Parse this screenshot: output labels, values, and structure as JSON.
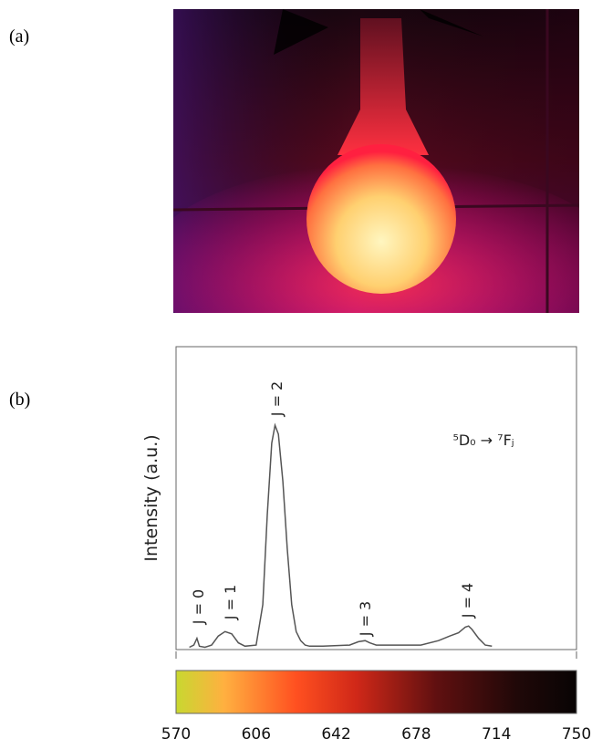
{
  "panel_labels": [
    "(a)",
    "(b)"
  ],
  "chart_data": {
    "type": "line",
    "ylabel": "Intensity (a.u.)",
    "annotations": [
      "J = 0",
      "J = 1",
      "J = 2",
      "J = 3",
      "J = 4",
      "⁵D₀ → ⁷Fⱼ"
    ],
    "x": [
      576,
      578,
      579.4,
      580.5,
      583,
      586,
      589,
      592,
      595,
      598,
      601,
      606,
      609,
      611,
      613,
      614.5,
      616,
      618,
      620,
      622,
      624,
      626,
      628,
      630,
      636,
      648,
      652,
      655,
      657,
      660,
      670,
      680,
      688,
      693,
      697,
      700,
      701.5,
      703,
      706,
      709,
      712
    ],
    "values": [
      1,
      2,
      5,
      1.5,
      1,
      2,
      6,
      8,
      7,
      3,
      1.5,
      2,
      20,
      60,
      92,
      100,
      96,
      75,
      45,
      20,
      8,
      4,
      2,
      1.5,
      1.5,
      2,
      3.5,
      4,
      3,
      2,
      2,
      2,
      4,
      6,
      7.5,
      10,
      10.5,
      9,
      5,
      2,
      1.5
    ],
    "color": "#555555",
    "xlim": [
      570,
      750
    ],
    "ylim": [
      0,
      135
    ],
    "xticks": [
      570,
      606,
      642,
      678,
      714,
      750
    ]
  }
}
